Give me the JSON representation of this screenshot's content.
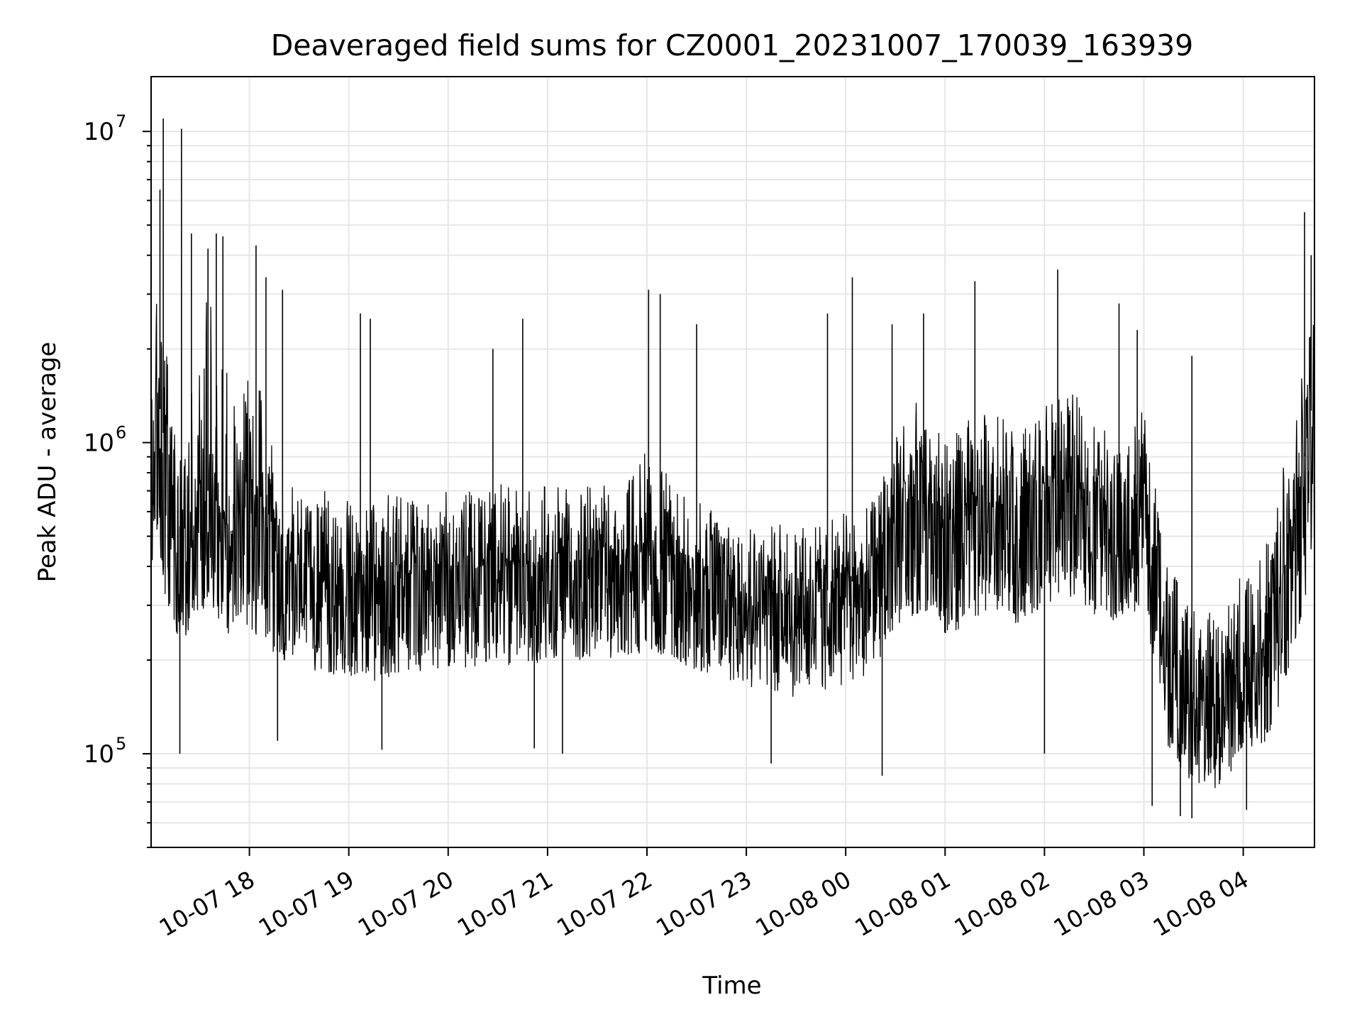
{
  "chart_data": {
    "type": "line",
    "title": "Deaveraged field sums for CZ0001_20231007_170039_163939",
    "xlabel": "Time",
    "ylabel": "Peak ADU - average",
    "yscale": "log",
    "ylim": [
      50000,
      15000000
    ],
    "xlim": [
      "2023-10-07 17:00:39",
      "2023-10-08 04:43:00"
    ],
    "grid": true,
    "series_color": "#000000",
    "grid_color": "#e6e6e6",
    "x_ticks": [
      {
        "value": "2023-10-07 18:00",
        "label": "10-07 18"
      },
      {
        "value": "2023-10-07 19:00",
        "label": "10-07 19"
      },
      {
        "value": "2023-10-07 20:00",
        "label": "10-07 20"
      },
      {
        "value": "2023-10-07 21:00",
        "label": "10-07 21"
      },
      {
        "value": "2023-10-07 22:00",
        "label": "10-07 22"
      },
      {
        "value": "2023-10-07 23:00",
        "label": "10-07 23"
      },
      {
        "value": "2023-10-08 00:00",
        "label": "10-08 00"
      },
      {
        "value": "2023-10-08 01:00",
        "label": "10-08 01"
      },
      {
        "value": "2023-10-08 02:00",
        "label": "10-08 02"
      },
      {
        "value": "2023-10-08 03:00",
        "label": "10-08 03"
      },
      {
        "value": "2023-10-08 04:00",
        "label": "10-08 04"
      }
    ],
    "y_ticks": [
      {
        "value": 100000,
        "base": "10",
        "exp": "5"
      },
      {
        "value": 1000000,
        "base": "10",
        "exp": "6"
      },
      {
        "value": 10000000,
        "base": "10",
        "exp": "7"
      }
    ],
    "series": [
      {
        "x": [
          "2023-10-07 17:00",
          "2023-10-07 17:05",
          "2023-10-07 17:10",
          "2023-10-07 17:15",
          "2023-10-07 17:20",
          "2023-10-07 17:25",
          "2023-10-07 17:30",
          "2023-10-07 17:35",
          "2023-10-07 17:40",
          "2023-10-07 17:45",
          "2023-10-07 17:50",
          "2023-10-07 17:55",
          "2023-10-07 18:00",
          "2023-10-07 18:05",
          "2023-10-07 18:10",
          "2023-10-07 18:15",
          "2023-10-07 18:20",
          "2023-10-07 18:30",
          "2023-10-07 18:45",
          "2023-10-07 19:00",
          "2023-10-07 19:15",
          "2023-10-07 19:30",
          "2023-10-07 19:45",
          "2023-10-07 20:00",
          "2023-10-07 20:15",
          "2023-10-07 20:30",
          "2023-10-07 20:45",
          "2023-10-07 21:00",
          "2023-10-07 21:15",
          "2023-10-07 21:30",
          "2023-10-07 21:45",
          "2023-10-07 22:00",
          "2023-10-07 22:15",
          "2023-10-07 22:30",
          "2023-10-07 22:45",
          "2023-10-07 23:00",
          "2023-10-07 23:15",
          "2023-10-07 23:30",
          "2023-10-07 23:45",
          "2023-10-08 00:00",
          "2023-10-08 00:15",
          "2023-10-08 00:30",
          "2023-10-08 00:45",
          "2023-10-08 01:00",
          "2023-10-08 01:15",
          "2023-10-08 01:30",
          "2023-10-08 01:45",
          "2023-10-08 02:00",
          "2023-10-08 02:15",
          "2023-10-08 02:30",
          "2023-10-08 02:45",
          "2023-10-08 03:00",
          "2023-10-08 03:15",
          "2023-10-08 03:30",
          "2023-10-08 03:45",
          "2023-10-08 04:00",
          "2023-10-08 04:15",
          "2023-10-08 04:30",
          "2023-10-08 04:43"
        ],
        "y": [
          1000000,
          1400000,
          900000,
          600000,
          500000,
          550000,
          600000,
          700000,
          650000,
          550000,
          500000,
          600000,
          600000,
          520000,
          480000,
          450000,
          420000,
          400000,
          380000,
          360000,
          350000,
          370000,
          380000,
          400000,
          390000,
          410000,
          400000,
          420000,
          410000,
          430000,
          420000,
          450000,
          430000,
          380000,
          370000,
          350000,
          330000,
          320000,
          330000,
          350000,
          380000,
          600000,
          650000,
          550000,
          580000,
          650000,
          600000,
          700000,
          750000,
          650000,
          600000,
          700000,
          200000,
          150000,
          140000,
          200000,
          220000,
          500000,
          1500000
        ],
        "hi": [
          1500000,
          3500000,
          2000000,
          1200000,
          900000,
          1500000,
          2500000,
          3000000,
          2500000,
          1800000,
          1500000,
          1500000,
          2000000,
          1800000,
          1200000,
          900000,
          800000,
          700000,
          700000,
          650000,
          650000,
          700000,
          650000,
          700000,
          700000,
          750000,
          700000,
          750000,
          700000,
          750000,
          700000,
          1000000,
          750000,
          650000,
          600000,
          600000,
          550000,
          550000,
          550000,
          600000,
          650000,
          1200000,
          1400000,
          1000000,
          1200000,
          1300000,
          1100000,
          1300000,
          1500000,
          1200000,
          1100000,
          1300000,
          400000,
          300000,
          280000,
          400000,
          500000,
          1200000,
          3000000
        ],
        "lo": [
          400000,
          450000,
          300000,
          250000,
          220000,
          240000,
          280000,
          300000,
          280000,
          240000,
          230000,
          260000,
          250000,
          230000,
          220000,
          210000,
          200000,
          190000,
          180000,
          175000,
          170000,
          180000,
          185000,
          190000,
          185000,
          195000,
          190000,
          200000,
          195000,
          205000,
          200000,
          210000,
          205000,
          180000,
          175000,
          165000,
          155000,
          150000,
          155000,
          165000,
          180000,
          250000,
          280000,
          240000,
          250000,
          280000,
          260000,
          300000,
          320000,
          280000,
          260000,
          300000,
          100000,
          80000,
          75000,
          100000,
          110000,
          200000,
          400000
        ]
      }
    ],
    "spikes": [
      {
        "x": "2023-10-07 17:08",
        "y": 11000000
      },
      {
        "x": "2023-10-07 17:19",
        "y": 10200000
      },
      {
        "x": "2023-10-07 17:06",
        "y": 6500000
      },
      {
        "x": "2023-10-07 17:25",
        "y": 4700000
      },
      {
        "x": "2023-10-07 17:35",
        "y": 4200000
      },
      {
        "x": "2023-10-07 17:40",
        "y": 4700000
      },
      {
        "x": "2023-10-07 17:44",
        "y": 4600000
      },
      {
        "x": "2023-10-07 18:04",
        "y": 4300000
      },
      {
        "x": "2023-10-07 18:10",
        "y": 3400000
      },
      {
        "x": "2023-10-07 18:20",
        "y": 3100000
      },
      {
        "x": "2023-10-07 19:07",
        "y": 2600000
      },
      {
        "x": "2023-10-07 19:13",
        "y": 2500000
      },
      {
        "x": "2023-10-07 20:27",
        "y": 2000000
      },
      {
        "x": "2023-10-07 20:45",
        "y": 2500000
      },
      {
        "x": "2023-10-07 22:01",
        "y": 3100000
      },
      {
        "x": "2023-10-07 22:08",
        "y": 3000000
      },
      {
        "x": "2023-10-07 22:30",
        "y": 2400000
      },
      {
        "x": "2023-10-07 23:49",
        "y": 2600000
      },
      {
        "x": "2023-10-08 00:04",
        "y": 3400000
      },
      {
        "x": "2023-10-08 00:28",
        "y": 2400000
      },
      {
        "x": "2023-10-08 00:47",
        "y": 2600000
      },
      {
        "x": "2023-10-08 01:18",
        "y": 3300000
      },
      {
        "x": "2023-10-08 02:08",
        "y": 3600000
      },
      {
        "x": "2023-10-08 02:45",
        "y": 2800000
      },
      {
        "x": "2023-10-08 02:56",
        "y": 2300000
      },
      {
        "x": "2023-10-08 03:29",
        "y": 1900000
      },
      {
        "x": "2023-10-08 04:37",
        "y": 5500000
      },
      {
        "x": "2023-10-08 04:41",
        "y": 4000000
      },
      {
        "x": "2023-10-07 17:18",
        "y": 100000
      },
      {
        "x": "2023-10-07 18:17",
        "y": 110000
      },
      {
        "x": "2023-10-07 19:20",
        "y": 103000
      },
      {
        "x": "2023-10-07 20:52",
        "y": 104000
      },
      {
        "x": "2023-10-07 21:09",
        "y": 100000
      },
      {
        "x": "2023-10-07 23:15",
        "y": 93000
      },
      {
        "x": "2023-10-08 00:22",
        "y": 85000
      },
      {
        "x": "2023-10-08 02:00",
        "y": 100000
      },
      {
        "x": "2023-10-08 03:05",
        "y": 68000
      },
      {
        "x": "2023-10-08 03:22",
        "y": 63000
      },
      {
        "x": "2023-10-08 03:29",
        "y": 62000
      },
      {
        "x": "2023-10-08 04:02",
        "y": 66000
      }
    ]
  }
}
